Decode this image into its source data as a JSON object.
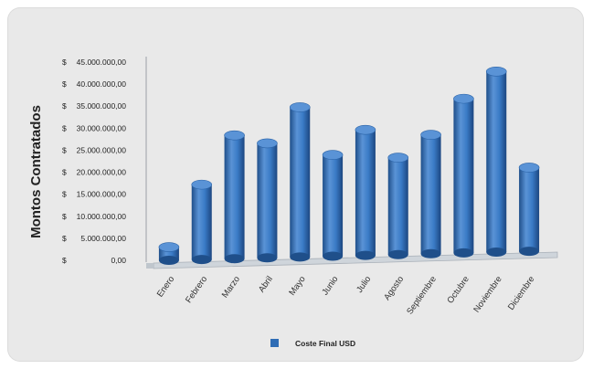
{
  "chart_data": {
    "type": "bar",
    "ylabel": "Montos Contratados",
    "categories": [
      "Enero",
      "Febrero",
      "Marzo",
      "Abril",
      "Mayo",
      "Junio",
      "Julio",
      "Agosto",
      "Septiembre",
      "Octubre",
      "Noviembre",
      "Diciembre"
    ],
    "series": [
      {
        "name": "Coste Final USD",
        "values": [
          3000000,
          17000000,
          28000000,
          26000000,
          34000000,
          23000000,
          28500000,
          22000000,
          27000000,
          35000000,
          41000000,
          19000000
        ]
      }
    ],
    "ylim": [
      0,
      45000000
    ],
    "y_ticks": [
      {
        "prefix": "$",
        "amount": "45.000.000,00"
      },
      {
        "prefix": "$",
        "amount": "40.000.000,00"
      },
      {
        "prefix": "$",
        "amount": "35.000.000,00"
      },
      {
        "prefix": "$",
        "amount": "30.000.000,00"
      },
      {
        "prefix": "$",
        "amount": "25.000.000,00"
      },
      {
        "prefix": "$",
        "amount": "20.000.000,00"
      },
      {
        "prefix": "$",
        "amount": "15.000.000,00"
      },
      {
        "prefix": "$",
        "amount": "10.000.000,00"
      },
      {
        "prefix": "$",
        "amount": "5.000.000,00"
      },
      {
        "prefix": "$",
        "amount": "0,00"
      }
    ],
    "grid": false,
    "legend_position": "bottom",
    "colors": {
      "bar": "#2f6db5",
      "bar_light": "#5a93d6",
      "bar_dark": "#1f4f8a",
      "floor": "#cfd5db"
    }
  }
}
